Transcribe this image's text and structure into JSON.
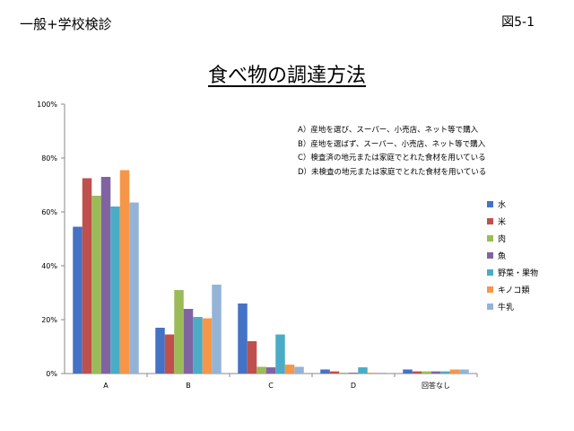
{
  "header": {
    "left_label": "一般+学校検診",
    "right_label": "図5-1"
  },
  "chart_data": {
    "type": "bar",
    "title": "食べ物の調達方法",
    "xlabel": "",
    "ylabel": "",
    "categories": [
      "A",
      "B",
      "C",
      "D",
      "回答なし"
    ],
    "ylim": [
      0,
      100
    ],
    "yticks": [
      "0%",
      "20%",
      "40%",
      "60%",
      "80%",
      "100%"
    ],
    "grid": false,
    "legend_position": "right",
    "series": [
      {
        "name": "水",
        "color": "#4472C4",
        "values": [
          54.5,
          17,
          26,
          1.5,
          1.5
        ]
      },
      {
        "name": "米",
        "color": "#C0504D",
        "values": [
          72.5,
          14.5,
          12,
          0.8,
          0.8
        ]
      },
      {
        "name": "肉",
        "color": "#9BBB59",
        "values": [
          66,
          31,
          2.5,
          0.3,
          0.8
        ]
      },
      {
        "name": "魚",
        "color": "#8064A2",
        "values": [
          73,
          24,
          2.3,
          0.3,
          0.8
        ]
      },
      {
        "name": "野菜・果物",
        "color": "#4BACC6",
        "values": [
          62,
          21,
          14.5,
          2.3,
          0.8
        ]
      },
      {
        "name": "キノコ類",
        "color": "#F79646",
        "values": [
          75.5,
          20.5,
          3.3,
          0.3,
          1.5
        ]
      },
      {
        "name": "牛乳",
        "color": "#95B3D7",
        "values": [
          63.5,
          33,
          2.5,
          0.3,
          1.5
        ]
      }
    ],
    "annotations": [
      "A）産地を選び、スーパー、小売店、ネット等で購入",
      "B）産地を選ばず、スーパー、小売店、ネット等で購入",
      "C）検査済の地元または家庭でとれた食材を用いている",
      "D）未検査の地元または家庭でとれた食材を用いている"
    ]
  }
}
